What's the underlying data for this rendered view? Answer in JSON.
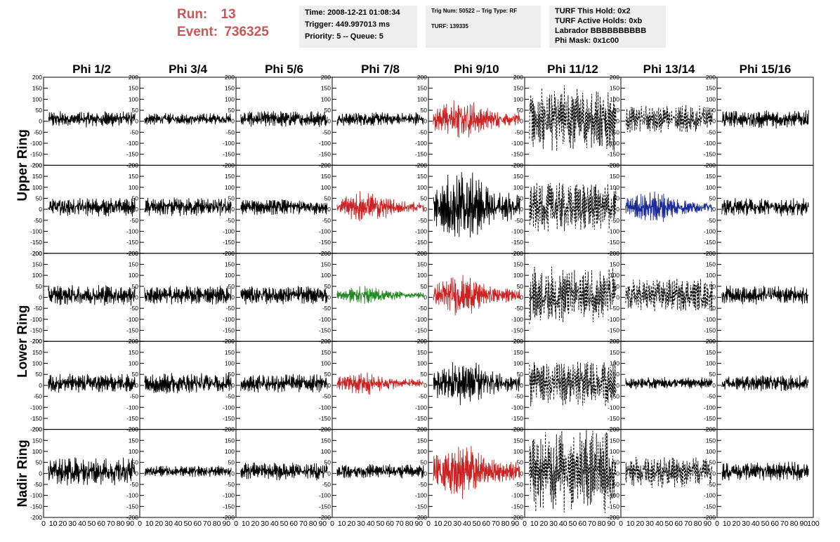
{
  "header": {
    "run_label": "Run:",
    "run_value": "13",
    "event_label": "Event:",
    "event_value": "736325",
    "time": "Time: 2008-12-21 01:08:34",
    "trigger": "Trigger: 449.997013 ms",
    "priority": "Priority: 5 -- Queue: 5",
    "trig_num": "Trig Num: 50522 -- Trig Type: RF",
    "turf": "TURF: 139335",
    "turf_this_hold": "TURF This Hold: 0x2",
    "turf_active_holds": "TURF Active Holds: 0xb",
    "labrador": "Labrador BBBBBBBBBB",
    "phi_mask": "Phi Mask: 0x1c00"
  },
  "colors": {
    "normal": "#000000",
    "red": "#cc2222",
    "green": "#228822",
    "blue": "#1a2a99",
    "title_red": "#cc5555"
  },
  "chart_data": {
    "type": "line",
    "columns": [
      "Phi 1/2",
      "Phi 3/4",
      "Phi 5/6",
      "Phi 7/8",
      "Phi 9/10",
      "Phi 11/12",
      "Phi 13/14",
      "Phi 15/16"
    ],
    "ring_labels": [
      "Upper Ring",
      "Lower Ring",
      "Nadir Ring"
    ],
    "rows": 5,
    "ylim": [
      -200,
      200
    ],
    "yticks": [
      200,
      150,
      100,
      50,
      0,
      -50,
      -100,
      -150,
      -200
    ],
    "yticks_last_row": [
      200,
      150,
      100,
      50,
      0,
      -50,
      -100,
      -150,
      -200
    ],
    "xlim": [
      0,
      100
    ],
    "xtick_labels": [
      "0",
      "10",
      "20",
      "30",
      "40",
      "50",
      "60",
      "70",
      "80",
      "90",
      "100"
    ],
    "waveform_styles": {
      "comment": "style per panel [row][col]: n=black solid, r=red, g=green, b=blue, d=black dashed, t=black tall solid",
      "grid": [
        [
          "n",
          "n",
          "n",
          "n",
          "r",
          "d",
          "d",
          "n"
        ],
        [
          "n",
          "n",
          "n",
          "r",
          "t",
          "d",
          "b",
          "n"
        ],
        [
          "n",
          "n",
          "n",
          "g",
          "r",
          "d",
          "d",
          "n"
        ],
        [
          "n",
          "n",
          "n",
          "r",
          "t",
          "d",
          "n",
          "n"
        ],
        [
          "n",
          "n",
          "n",
          "n",
          "r",
          "d",
          "d",
          "n"
        ]
      ],
      "amplitude": [
        [
          35,
          25,
          35,
          30,
          90,
          140,
          60,
          40
        ],
        [
          40,
          40,
          35,
          70,
          170,
          110,
          70,
          40
        ],
        [
          45,
          40,
          40,
          40,
          90,
          120,
          70,
          40
        ],
        [
          40,
          45,
          40,
          50,
          110,
          100,
          25,
          35
        ],
        [
          60,
          25,
          40,
          30,
          120,
          180,
          70,
          40
        ]
      ]
    }
  }
}
